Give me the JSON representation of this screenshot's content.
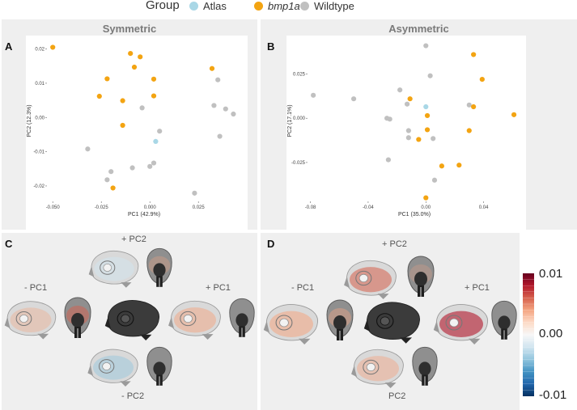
{
  "legend": {
    "title": "Group",
    "items": [
      {
        "label": "Atlas",
        "color": "#a9d7e6"
      },
      {
        "label": "bmp1a",
        "color": "#f3a412",
        "italic": true
      },
      {
        "label": "Wildtype",
        "color": "#c0c0c0"
      }
    ]
  },
  "panels": {
    "A": {
      "letter": "A",
      "title": "Symmetric",
      "xlabel": "PC1 (42.9%)",
      "ylabel": "PC2 (12.3%)",
      "xticks": [
        "-0.050",
        "-0.025",
        "0.000",
        "0.025"
      ],
      "yticks": [
        "0.02",
        "0.01",
        "0.00",
        "-0.01",
        "-0.02"
      ]
    },
    "B": {
      "letter": "B",
      "title": "Asymmetric",
      "xlabel": "PC1 (35.0%)",
      "ylabel": "PC2 (17.1%)",
      "xticks": [
        "-0.08",
        "-0.04",
        "0.00",
        "0.04"
      ],
      "yticks": [
        "0.025",
        "0.000",
        "-0.025"
      ]
    },
    "C": {
      "letter": "C",
      "labels": {
        "plus_pc2": "+ PC2",
        "minus_pc1": "- PC1",
        "plus_pc1": "+ PC1",
        "minus_pc2": "- PC2"
      }
    },
    "D": {
      "letter": "D",
      "labels": {
        "plus_pc2": "+ PC2",
        "minus_pc1": "- PC1",
        "plus_pc1": "+ PC1",
        "minus_pc2": "PC2"
      }
    }
  },
  "colorbar": {
    "max_label": "0.01",
    "mid_label": "0.00",
    "min_label": "-0.01",
    "colors": [
      "#67001f",
      "#b2182b",
      "#d6604d",
      "#f4a582",
      "#fddbc7",
      "#f7f7f7",
      "#d1e5f0",
      "#92c5de",
      "#4393c3",
      "#2166ac",
      "#053061"
    ]
  },
  "chart_data": [
    {
      "type": "scatter",
      "title": "Symmetric",
      "xlabel": "PC1 (42.9%)",
      "ylabel": "PC2 (12.3%)",
      "xlim": [
        -0.053,
        0.047
      ],
      "ylim": [
        -0.0245,
        0.0225
      ],
      "series": [
        {
          "name": "Atlas",
          "color": "#a9d7e6",
          "points": [
            [
              0.003,
              -0.007
            ]
          ]
        },
        {
          "name": "bmp1a",
          "color": "#f3a412",
          "points": [
            [
              -0.05,
              0.0205
            ],
            [
              -0.01,
              0.0187
            ],
            [
              -0.005,
              0.0177
            ],
            [
              -0.008,
              0.0147
            ],
            [
              -0.022,
              0.0113
            ],
            [
              0.002,
              0.0112
            ],
            [
              -0.026,
              0.0062
            ],
            [
              0.002,
              0.0063
            ],
            [
              -0.014,
              0.0049
            ],
            [
              -0.014,
              -0.0023
            ],
            [
              -0.019,
              -0.0206
            ],
            [
              0.032,
              0.0143
            ]
          ]
        },
        {
          "name": "Wildtype",
          "color": "#c0c0c0",
          "points": [
            [
              0.035,
              0.011
            ],
            [
              0.033,
              0.0035
            ],
            [
              0.039,
              0.0025
            ],
            [
              0.043,
              0.001
            ],
            [
              -0.004,
              0.0028
            ],
            [
              0.005,
              -0.004
            ],
            [
              0.036,
              -0.0055
            ],
            [
              -0.032,
              -0.0092
            ],
            [
              0.002,
              -0.0133
            ],
            [
              0.0,
              -0.0143
            ],
            [
              -0.009,
              -0.0147
            ],
            [
              -0.02,
              -0.0158
            ],
            [
              -0.022,
              -0.0182
            ],
            [
              0.023,
              -0.0221
            ]
          ]
        }
      ]
    },
    {
      "type": "scatter",
      "title": "Asymmetric",
      "xlabel": "PC1 (35.0%)",
      "ylabel": "PC2 (17.1%)",
      "xlim": [
        -0.082,
        0.066
      ],
      "ylim": [
        -0.047,
        0.044
      ],
      "series": [
        {
          "name": "Atlas",
          "color": "#a9d7e6",
          "points": [
            [
              0.0,
              0.0065
            ]
          ]
        },
        {
          "name": "bmp1a",
          "color": "#f3a412",
          "points": [
            [
              0.033,
              0.036
            ],
            [
              0.039,
              0.022
            ],
            [
              -0.011,
              0.011
            ],
            [
              0.033,
              0.0065
            ],
            [
              0.001,
              0.0015
            ],
            [
              0.061,
              0.002
            ],
            [
              0.001,
              -0.0065
            ],
            [
              0.03,
              -0.007
            ],
            [
              -0.005,
              -0.012
            ],
            [
              0.011,
              -0.027
            ],
            [
              0.023,
              -0.0265
            ],
            [
              0.0,
              -0.045
            ]
          ]
        },
        {
          "name": "Wildtype",
          "color": "#c0c0c0",
          "points": [
            [
              0.0,
              0.041
            ],
            [
              0.003,
              0.024
            ],
            [
              -0.078,
              0.013
            ],
            [
              -0.05,
              0.011
            ],
            [
              -0.018,
              0.016
            ],
            [
              -0.013,
              0.008
            ],
            [
              0.03,
              0.0075
            ],
            [
              -0.027,
              0.0
            ],
            [
              -0.025,
              -0.0005
            ],
            [
              -0.012,
              -0.007
            ],
            [
              -0.012,
              -0.011
            ],
            [
              0.005,
              -0.0115
            ],
            [
              -0.026,
              -0.0235
            ],
            [
              0.006,
              -0.035
            ]
          ]
        }
      ]
    }
  ]
}
